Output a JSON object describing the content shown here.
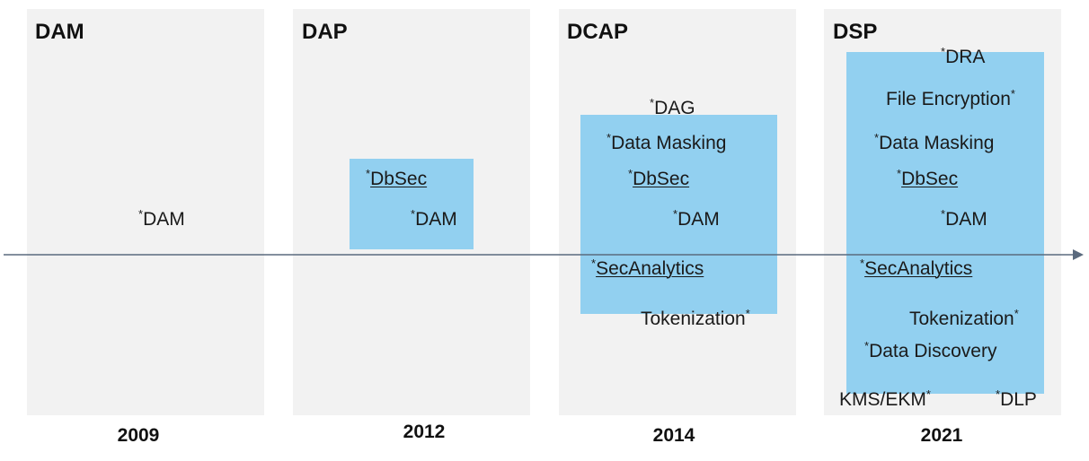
{
  "stages": [
    {
      "title": "DAM",
      "year": "2009",
      "items": [
        "DAM"
      ]
    },
    {
      "title": "DAP",
      "year": "2012",
      "items": [
        "DbSec",
        "DAM"
      ]
    },
    {
      "title": "DCAP",
      "year": "2014",
      "items": [
        "DAG",
        "Data Masking",
        "DbSec",
        "DAM",
        "SecAnalytics",
        "Tokenization"
      ]
    },
    {
      "title": "DSP",
      "year": "2021",
      "items": [
        "DRA",
        "File Encryption",
        "Data Masking",
        "DbSec",
        "DAM",
        "SecAnalytics",
        "Tokenization",
        "Data Discovery",
        "KMS/EKM",
        "DLP"
      ]
    }
  ],
  "marker": "*",
  "colors": {
    "panel": "#f2f2f2",
    "highlight": "#92d0f0",
    "axis": "#5a6a7e"
  }
}
